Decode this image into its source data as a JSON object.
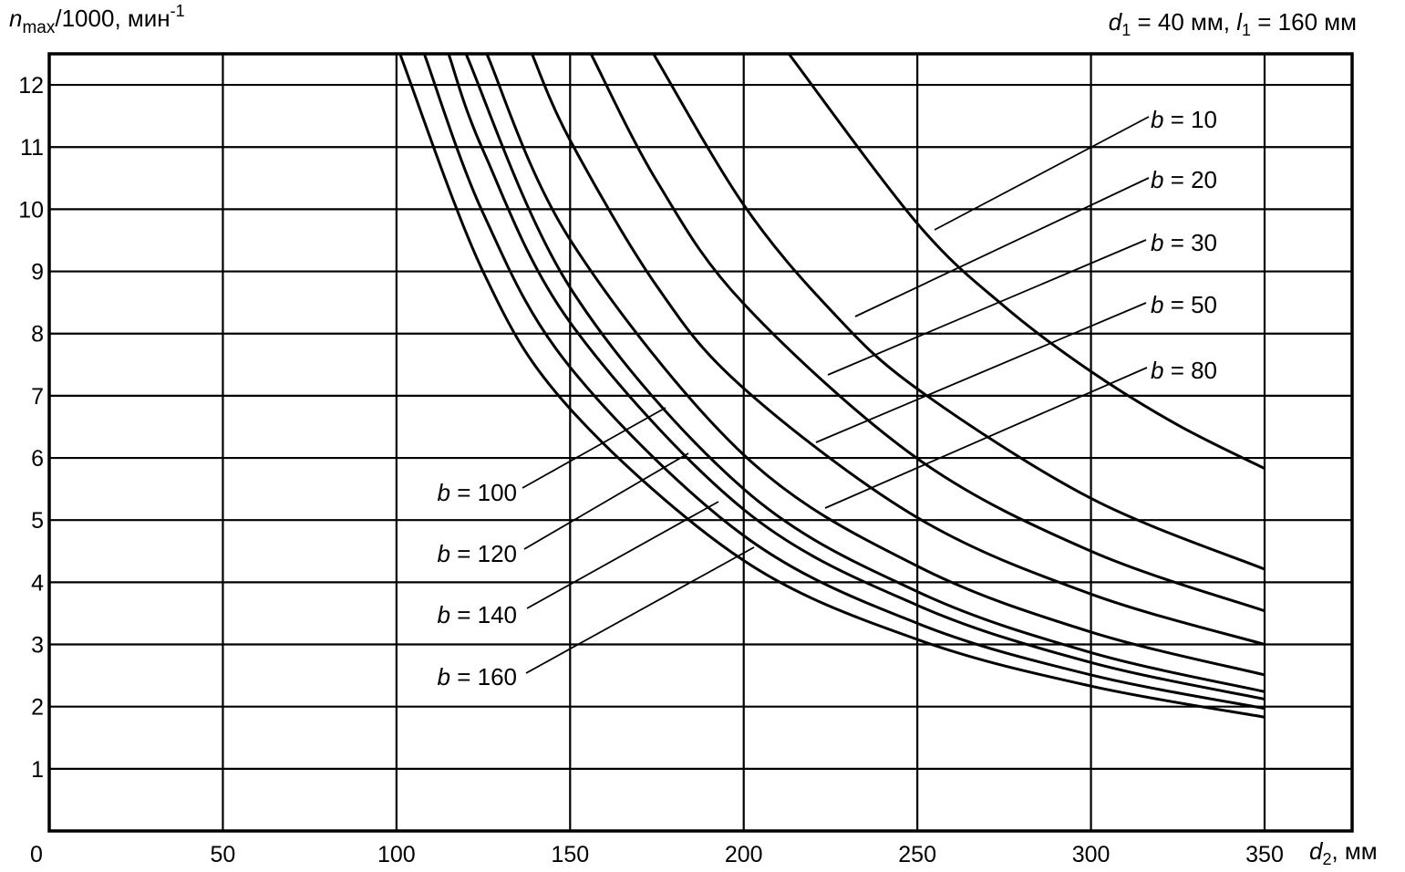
{
  "chart_data": {
    "type": "line",
    "ylabel": {
      "var": "n",
      "sub": "max",
      "rest": "/1000, мин",
      "sup": "-1"
    },
    "xlabel": {
      "var": "d",
      "sub": "2",
      "rest": ", мм"
    },
    "params": {
      "d_var": "d",
      "d_sub": "1",
      "d_val": " = 40 мм, ",
      "l_var": "l",
      "l_sub": "1",
      "l_val": " = 160 мм"
    },
    "xlim": [
      0,
      375
    ],
    "ylim": [
      0,
      12.5
    ],
    "grid": true,
    "x_ticks": [
      0,
      50,
      100,
      150,
      200,
      250,
      300,
      350
    ],
    "x_tick_labels": [
      "0",
      "50",
      "100",
      "150",
      "200",
      "250",
      "300",
      "350"
    ],
    "y_ticks": [
      1,
      2,
      3,
      4,
      5,
      6,
      7,
      8,
      9,
      10,
      11,
      12
    ],
    "y_tick_labels": [
      "1",
      "2",
      "3",
      "4",
      "5",
      "6",
      "7",
      "8",
      "9",
      "10",
      "11",
      "12"
    ],
    "series": [
      {
        "name": "b = 10",
        "b_var": "b",
        "b_text": " = 10",
        "x": [
          213,
          250,
          275,
          300,
          325,
          350
        ],
        "y": [
          12.5,
          9.77,
          8.44,
          7.39,
          6.53,
          5.83
        ]
      },
      {
        "name": "b = 20",
        "b_var": "b",
        "b_text": " = 20",
        "x": [
          174,
          200,
          225,
          250,
          300,
          350
        ],
        "y": [
          12.5,
          10.07,
          8.38,
          7.11,
          5.35,
          4.21
        ]
      },
      {
        "name": "b = 30",
        "b_var": "b",
        "b_text": " = 30",
        "x": [
          156,
          175,
          200,
          250,
          300,
          350
        ],
        "y": [
          12.5,
          10.45,
          8.48,
          5.99,
          4.5,
          3.54
        ]
      },
      {
        "name": "b = 50",
        "b_var": "b",
        "b_text": " = 50",
        "x": [
          139,
          150,
          175,
          200,
          250,
          300,
          350
        ],
        "y": [
          12.5,
          11.11,
          8.76,
          7.12,
          5.04,
          3.81,
          3.0
        ]
      },
      {
        "name": "b = 80",
        "b_var": "b",
        "b_text": " = 80",
        "x": [
          126,
          150,
          200,
          250,
          300,
          350
        ],
        "y": [
          12.5,
          9.51,
          6.05,
          4.26,
          3.2,
          2.51
        ]
      },
      {
        "name": "b = 100",
        "b_var": "b",
        "b_text": " = 100",
        "x": [
          120,
          150,
          200,
          250,
          300,
          350
        ],
        "y": [
          12.5,
          8.74,
          5.5,
          3.85,
          2.87,
          2.24
        ]
      },
      {
        "name": "b = 120",
        "b_var": "b",
        "b_text": " = 120",
        "x": [
          115,
          125,
          150,
          200,
          250,
          300,
          350
        ],
        "y": [
          12.5,
          10.94,
          8.18,
          5.17,
          3.63,
          2.71,
          2.12
        ]
      },
      {
        "name": "b = 140",
        "b_var": "b",
        "b_text": " = 140",
        "x": [
          108,
          125,
          150,
          200,
          250,
          300,
          350
        ],
        "y": [
          12.5,
          9.93,
          7.46,
          4.75,
          3.34,
          2.51,
          1.97
        ]
      },
      {
        "name": "b = 160",
        "b_var": "b",
        "b_text": " = 160",
        "x": [
          101,
          125,
          150,
          200,
          250,
          300,
          350
        ],
        "y": [
          12.5,
          8.99,
          6.79,
          4.35,
          3.08,
          2.33,
          1.83
        ]
      }
    ]
  }
}
